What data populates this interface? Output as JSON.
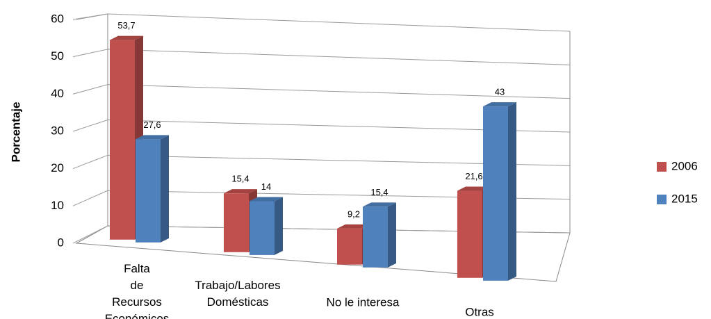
{
  "chart_data": {
    "type": "bar3d",
    "y_label": "Porcentaje",
    "categories": [
      "Falta de Recursos Económicos",
      "Trabajo/Labores Domésticas",
      "No le interesa",
      "Otras"
    ],
    "series": [
      {
        "name": "2006",
        "color": "#c0504d",
        "values": [
          53.7,
          15.4,
          9.2,
          21.6
        ],
        "value_labels": [
          "53,7",
          "15,4",
          "9,2",
          "21,6"
        ]
      },
      {
        "name": "2015",
        "color": "#4f81bd",
        "values": [
          27.6,
          14,
          15.4,
          43
        ],
        "value_labels": [
          "27,6",
          "14",
          "15,4",
          "43"
        ]
      }
    ],
    "ylim": [
      0,
      60
    ],
    "yticks": [
      0,
      10,
      20,
      30,
      40,
      50,
      60
    ],
    "grid": true,
    "legend": "right"
  }
}
